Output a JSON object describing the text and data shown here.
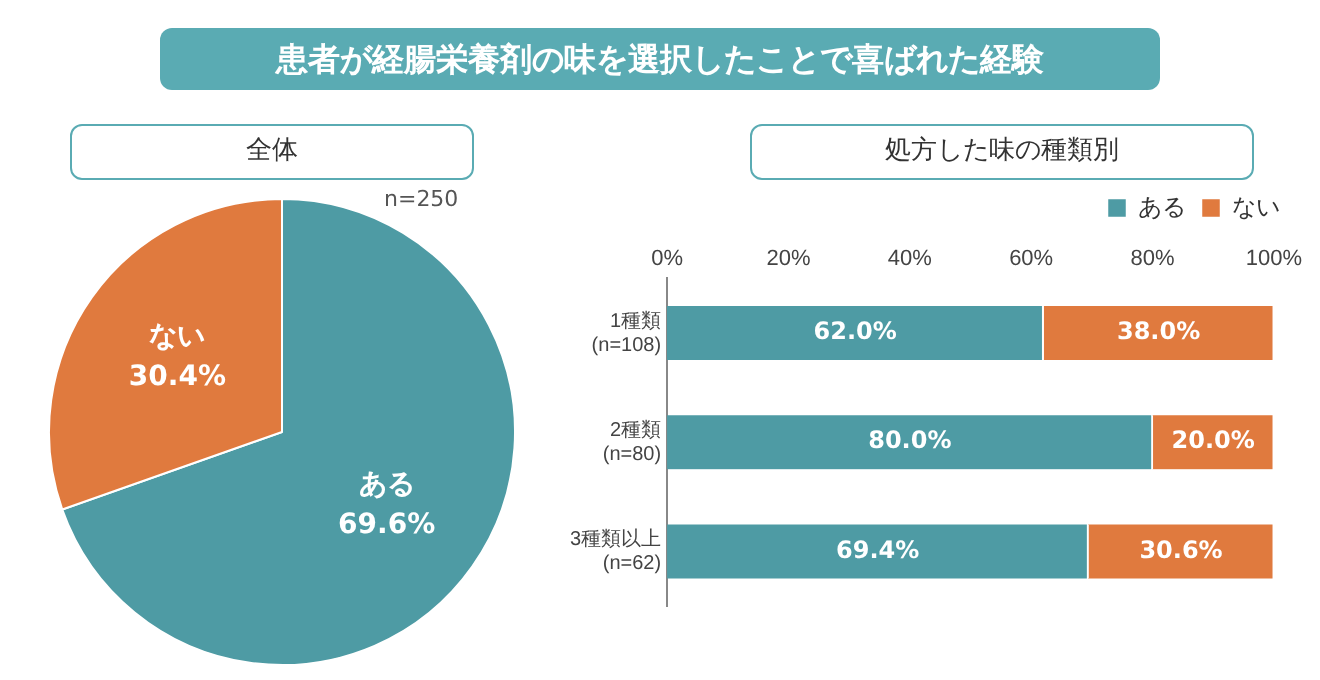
{
  "chart_data": [
    {
      "type": "pie",
      "title": "患者が経腸栄養剤の味を選択したことで喜ばれた経験",
      "subtitle": "全体",
      "categories": [
        "ある",
        "ない"
      ],
      "values": [
        69.6,
        30.4
      ],
      "colors": [
        "#4e9ba4",
        "#e07a3e"
      ],
      "value_labels": [
        "69.6%",
        "30.4%"
      ],
      "annotations": [
        "n=250"
      ],
      "legend": false
    },
    {
      "type": "bar",
      "orientation": "horizontal",
      "stacked": true,
      "title": "処方した味の種類別",
      "categories": [
        "1種類\n(n=108)",
        "2種類\n(n=80)",
        "3種類以上\n(n=62)"
      ],
      "series": [
        {
          "name": "ある",
          "color": "#4e9ba4",
          "values": [
            62.0,
            80.0,
            69.4
          ],
          "value_labels": [
            "62.0%",
            "80.0%",
            "69.4%"
          ]
        },
        {
          "name": "ない",
          "color": "#e07a3e",
          "values": [
            38.0,
            20.0,
            30.6
          ],
          "value_labels": [
            "38.0%",
            "20.0%",
            "30.6%"
          ]
        }
      ],
      "xlim": [
        0,
        100
      ],
      "xticks": [
        {
          "value": 0,
          "label": "0%"
        },
        {
          "value": 20,
          "label": "20%"
        },
        {
          "value": 40,
          "label": "40%"
        },
        {
          "value": 60,
          "label": "60%"
        },
        {
          "value": 80,
          "label": "80%"
        },
        {
          "value": 100,
          "label": "100%"
        }
      ],
      "grid": false,
      "legend": "top right"
    }
  ]
}
